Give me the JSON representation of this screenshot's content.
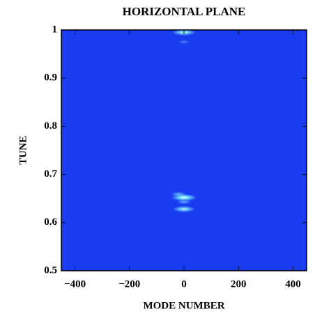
{
  "chart_data": {
    "type": "heatmap",
    "title": "HORIZONTAL  PLANE",
    "x_label": "MODE NUMBER",
    "y_label": "TUNE",
    "background_color": "#1a3cf0",
    "color": "#7ff4ff",
    "x": [
      0,
      0,
      -20,
      0,
      0,
      0
    ],
    "y": [
      0.995,
      0.975,
      0.659,
      0.652,
      0.643,
      0.628
    ],
    "values": [
      0.9,
      0.3,
      0.5,
      1.0,
      0.45,
      0.85
    ],
    "xlim": [
      -450,
      450
    ],
    "ylim": [
      0.5,
      1
    ],
    "xticks": [
      {
        "value": -400,
        "label": "−400"
      },
      {
        "value": -200,
        "label": "−200"
      },
      0,
      200,
      400
    ],
    "yticks": [
      0.5,
      0.6,
      0.7,
      0.8,
      0.9,
      1
    ]
  }
}
